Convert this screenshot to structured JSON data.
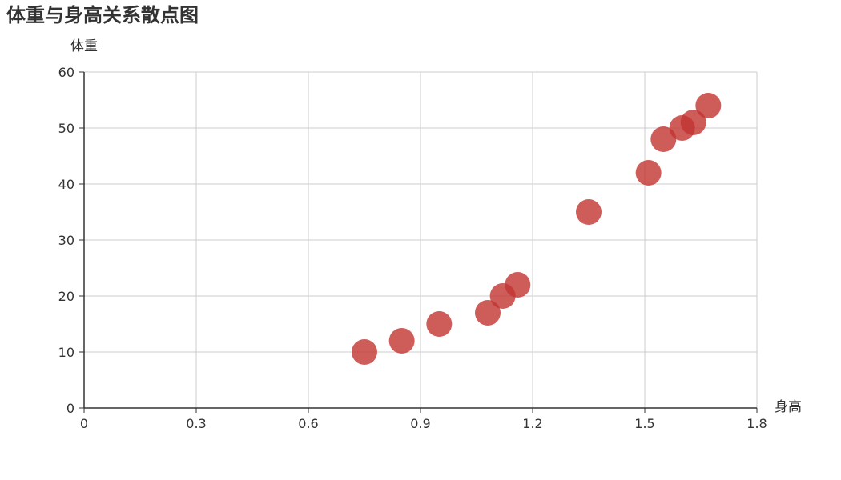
{
  "chart_data": {
    "type": "scatter",
    "title": "体重与身高关系散点图",
    "xlabel": "身高",
    "ylabel": "体重",
    "xlim": [
      0,
      1.8
    ],
    "ylim": [
      0,
      60
    ],
    "xticks": [
      0,
      0.3,
      0.6,
      0.9,
      1.2,
      1.5,
      1.8
    ],
    "yticks": [
      0,
      10,
      20,
      30,
      40,
      50,
      60
    ],
    "xtick_labels": [
      "0",
      "0.3",
      "0.6",
      "0.9",
      "1.2",
      "1.5",
      "1.8"
    ],
    "ytick_labels": [
      "0",
      "10",
      "20",
      "30",
      "40",
      "50",
      "60"
    ],
    "grid": true,
    "point_color": "#c23531",
    "points": [
      {
        "x": 0.75,
        "y": 10
      },
      {
        "x": 0.85,
        "y": 12
      },
      {
        "x": 0.95,
        "y": 15
      },
      {
        "x": 1.08,
        "y": 17
      },
      {
        "x": 1.12,
        "y": 20
      },
      {
        "x": 1.16,
        "y": 22
      },
      {
        "x": 1.35,
        "y": 35
      },
      {
        "x": 1.51,
        "y": 42
      },
      {
        "x": 1.55,
        "y": 48
      },
      {
        "x": 1.6,
        "y": 50
      },
      {
        "x": 1.63,
        "y": 51
      },
      {
        "x": 1.67,
        "y": 54
      }
    ]
  }
}
